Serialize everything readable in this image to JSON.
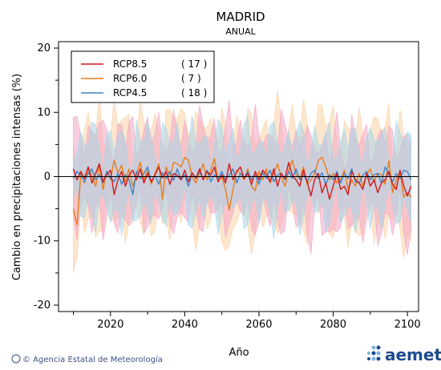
{
  "chart_data": {
    "type": "line",
    "title": "MADRID",
    "subtitle": "ANUAL",
    "xlabel": "Año",
    "ylabel": "Cambio en precipitaciones intensas (%)",
    "xlim": [
      2006,
      2103
    ],
    "ylim": [
      -21,
      21
    ],
    "xticks": [
      2020,
      2040,
      2060,
      2080,
      2100
    ],
    "yticks": [
      -20,
      -10,
      0,
      10,
      20
    ],
    "reference_line": 0,
    "legend_position": "top-left",
    "series": [
      {
        "name": "RCP8.5",
        "count": "( 17 )",
        "color": "#d2191b",
        "band_color": "#f2a6c4",
        "x_start": 2010,
        "values": [
          1.2,
          -0.5,
          0.8,
          -0.3,
          1.5,
          -1.0,
          0.5,
          2.0,
          -0.8,
          0.3,
          1.0,
          -2.8,
          -0.5,
          0.8,
          -1.5,
          0.2,
          1.0,
          -0.5,
          1.2,
          -1.0,
          0.5,
          -0.8,
          0.3,
          1.5,
          -0.2,
          0.8,
          -1.2,
          0.5,
          0.2,
          -0.5,
          1.0,
          -0.8,
          0.6,
          -0.3,
          1.2,
          -0.5,
          0.8,
          0.2,
          1.5,
          -0.8,
          0.3,
          -1.0,
          2.0,
          -0.5,
          0.8,
          1.5,
          -0.3,
          0.5,
          -1.2,
          0.8,
          -0.5,
          1.0,
          0.3,
          -0.8,
          1.2,
          -1.5,
          0.5,
          -0.3,
          2.2,
          0.2,
          -0.5,
          -1.5,
          1.0,
          -0.8,
          -3.0,
          -0.5,
          0.5,
          -2.5,
          -1.0,
          -3.5,
          -1.5,
          0.5,
          -2.0,
          -1.5,
          -2.8,
          0.8,
          -0.5,
          -1.0,
          -2.0,
          0.5,
          -1.5,
          -0.5,
          -2.5,
          -1.0,
          -0.5,
          0.8,
          -1.2,
          -2.0,
          1.0,
          -1.5,
          -3.0,
          -1.5
        ]
      },
      {
        "name": "RCP6.0",
        "count": "(   7 )",
        "color": "#ec7d17",
        "band_color": "#fbd1a5",
        "x_start": 2010,
        "values": [
          -5.0,
          -7.5,
          0.5,
          -1.0,
          1.5,
          0.0,
          -1.5,
          1.8,
          -2.0,
          0.8,
          -0.5,
          2.5,
          0.5,
          1.8,
          -0.8,
          1.2,
          -1.5,
          0.3,
          2.2,
          -0.5,
          1.0,
          -1.2,
          0.5,
          2.0,
          -3.5,
          1.5,
          0.0,
          2.2,
          2.0,
          1.5,
          3.0,
          2.5,
          0.0,
          -1.0,
          0.5,
          2.0,
          -0.5,
          1.0,
          2.8,
          -0.8,
          0.0,
          -2.0,
          -5.2,
          -2.0,
          1.0,
          0.5,
          -0.5,
          1.2,
          -1.5,
          -2.2,
          0.8,
          -0.5,
          1.2,
          -1.0,
          0.5,
          2.0,
          0.0,
          -1.5,
          1.0,
          2.5,
          0.3,
          -0.5,
          1.5,
          -1.2,
          -0.5,
          0.5,
          2.5,
          3.0,
          1.5,
          -0.5,
          0.5,
          -1.0,
          -0.5,
          1.0,
          -2.0,
          -0.5,
          -1.5,
          0.5,
          -1.5,
          0.3,
          1.2,
          -0.8,
          0.5,
          0.3,
          -1.2,
          2.5,
          -2.5,
          -0.5,
          0.8,
          -3.2,
          -2.5,
          -3.2
        ]
      },
      {
        "name": "RCP4.5",
        "count": "( 18 )",
        "color": "#3d86c8",
        "band_color": "#a8d6e8",
        "x_start": 2010,
        "values": [
          -0.3,
          0.8,
          0.2,
          -0.8,
          0.5,
          1.2,
          -0.5,
          0.3,
          -1.0,
          0.8,
          -0.2,
          -0.8,
          0.5,
          -1.2,
          0.3,
          -0.5,
          -2.8,
          0.8,
          -0.3,
          0.5,
          1.5,
          -0.8,
          0.2,
          -1.2,
          0.6,
          -0.3,
          0.8,
          -0.6,
          1.2,
          -0.5,
          0.3,
          -1.5,
          0.5,
          -0.2,
          0.8,
          -0.5,
          1.0,
          -0.8,
          0.3,
          -0.3,
          0.8,
          -0.5,
          0.2,
          1.2,
          -1.0,
          0.5,
          -0.2,
          0.8,
          -0.5,
          0.3,
          -1.2,
          0.6,
          -0.3,
          1.0,
          -0.8,
          0.2,
          0.5,
          -0.5,
          0.8,
          -0.3,
          1.2,
          -0.5,
          0.3,
          -0.8,
          0.5,
          1.0,
          -0.3,
          0.6,
          -1.2,
          0.3,
          -0.5,
          0.8,
          -1.0,
          0.5,
          -0.3,
          1.2,
          -0.8,
          -1.0,
          0.2,
          0.8,
          -0.5,
          0.3,
          0.5,
          -1.0,
          1.5,
          0.3,
          -0.8,
          0.5,
          -0.3,
          1.0,
          0.8,
          -0.5
        ]
      }
    ]
  },
  "footer": {
    "credit": "© Agencia Estatal de Meteorología",
    "brand": "aemet",
    "brand_colors": [
      "#1e4b8f",
      "#7ab4e0"
    ]
  }
}
